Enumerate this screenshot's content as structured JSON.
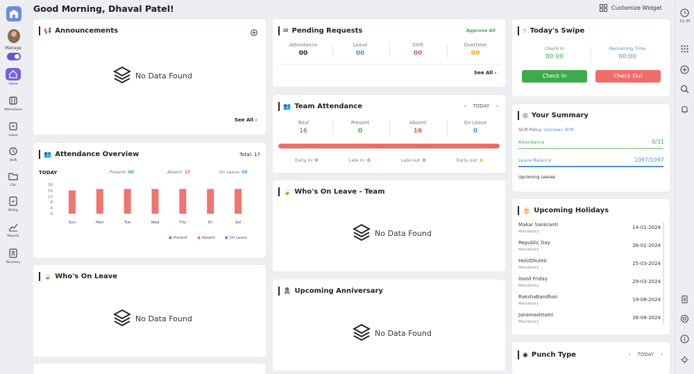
{
  "header": {
    "greeting": "Good Morning, Dhaval Patel!",
    "customize_label": "Customize Widget"
  },
  "sidebar": {
    "manage_label": "Manage",
    "items": [
      {
        "label": "Home",
        "icon": "home-icon"
      },
      {
        "label": "Attendance",
        "icon": "attendance-icon"
      },
      {
        "label": "Leave",
        "icon": "leave-icon"
      },
      {
        "label": "Shift",
        "icon": "shift-icon"
      },
      {
        "label": "File",
        "icon": "folder-icon"
      },
      {
        "label": "Billing",
        "icon": "billing-icon"
      },
      {
        "label": "Reports",
        "icon": "reports-icon"
      },
      {
        "label": "Directory",
        "icon": "directory-icon"
      }
    ]
  },
  "rightbar": {
    "time": "11:35"
  },
  "common": {
    "no_data": "No Data Found",
    "see_all": "See All",
    "today": "TODAY"
  },
  "announcements": {
    "title": "Announcements"
  },
  "attendance_overview": {
    "title": "Attendance Overview",
    "total_label": "Total: 17",
    "today_label": "TODAY",
    "present_label": "Present:",
    "present_value": "00",
    "absent_label": "Absent:",
    "absent_value": "17",
    "onleave_label": "On Leave:",
    "onleave_value": "00",
    "legend": [
      "Present",
      "Absent",
      "On Leave"
    ]
  },
  "chart_data": {
    "type": "bar",
    "categories": [
      "Sun",
      "Mon",
      "Tue",
      "Wed",
      "Thu",
      "Fri",
      "Sat"
    ],
    "series": [
      {
        "name": "Present",
        "values": [
          0,
          0,
          0,
          0,
          0,
          0,
          0
        ],
        "color": "#4caf50"
      },
      {
        "name": "Absent",
        "values": [
          16,
          17,
          17,
          17,
          17,
          17,
          17
        ],
        "color": "#f07470"
      },
      {
        "name": "On Leave",
        "values": [
          0,
          0,
          0,
          0,
          0,
          0,
          0
        ],
        "color": "#4a90e2"
      }
    ],
    "yticks": [
      0,
      4,
      8,
      12,
      16,
      20
    ],
    "ylim": [
      0,
      20
    ],
    "legend_position": "bottom-right"
  },
  "whos_on_leave": {
    "title": "Who's On Leave"
  },
  "pending_requests": {
    "title": "Pending Requests",
    "approve_all": "Approve All",
    "stats": [
      {
        "label": "Attendance",
        "value": "00",
        "color": "#222222"
      },
      {
        "label": "Leave",
        "value": "00",
        "color": "#4a90e2"
      },
      {
        "label": "Shift",
        "value": "00",
        "color": "#e05a55"
      },
      {
        "label": "Overtime",
        "value": "00",
        "color": "#f0a81a"
      }
    ]
  },
  "team_attendance": {
    "title": "Team Attendance",
    "stats": [
      {
        "label": "Total",
        "value": "16",
        "color": "#555555"
      },
      {
        "label": "Present",
        "value": "0",
        "color": "#3faa4a"
      },
      {
        "label": "Absent",
        "value": "16",
        "color": "#e05a55"
      },
      {
        "label": "On Leave",
        "value": "0",
        "color": "#4a90e2"
      }
    ],
    "absent_fraction": 1.0,
    "bottom": [
      {
        "label": "Early in:",
        "value": "0",
        "color": "#3faa4a"
      },
      {
        "label": "Late in:",
        "value": "0",
        "color": "#e05a55"
      },
      {
        "label": "Late out:",
        "value": "0",
        "color": "#3faa4a"
      },
      {
        "label": "Early out:",
        "value": "0",
        "color": "#f0a81a"
      }
    ]
  },
  "whos_on_leave_team": {
    "title": "Who's On Leave - Team"
  },
  "upcoming_anniversary": {
    "title": "Upcoming Anniversary"
  },
  "todays_swipe": {
    "title": "Today's Swipe",
    "checkin_label": "Check In",
    "checkin_value": "00:00",
    "remaining_label": "Remaining Time",
    "remaining_value": "00:00",
    "checkin_button": "Check In",
    "checkout_button": "Check Out"
  },
  "your_summary": {
    "title": "Your Summary",
    "shift_policy_label": "Shift Policy:",
    "shift_policy_value": "Unknown Shift",
    "attendance_label": "Attendance",
    "attendance_value": "0/31",
    "leave_balance_label": "Leave Balance",
    "leave_balance_value": "1097/1097",
    "upcoming_leaves_label": "Upcoming Leaves"
  },
  "upcoming_holidays": {
    "title": "Upcoming Holidays",
    "items": [
      {
        "name": "Makar Sankranti",
        "type": "Mandatory",
        "date": "14-01-2024"
      },
      {
        "name": "Republic Day",
        "type": "Mandatory",
        "date": "26-01-2024"
      },
      {
        "name": "Holi/Dhuleti",
        "type": "Mandatory",
        "date": "25-03-2024"
      },
      {
        "name": "Good Friday",
        "type": "Mandatory",
        "date": "29-03-2024"
      },
      {
        "name": "RakshaBandhan",
        "type": "Mandatory",
        "date": "19-08-2024"
      },
      {
        "name": "Janamashtami",
        "type": "Mandatory",
        "date": "26-08-2024"
      }
    ]
  },
  "punch_type": {
    "title": "Punch Type"
  }
}
